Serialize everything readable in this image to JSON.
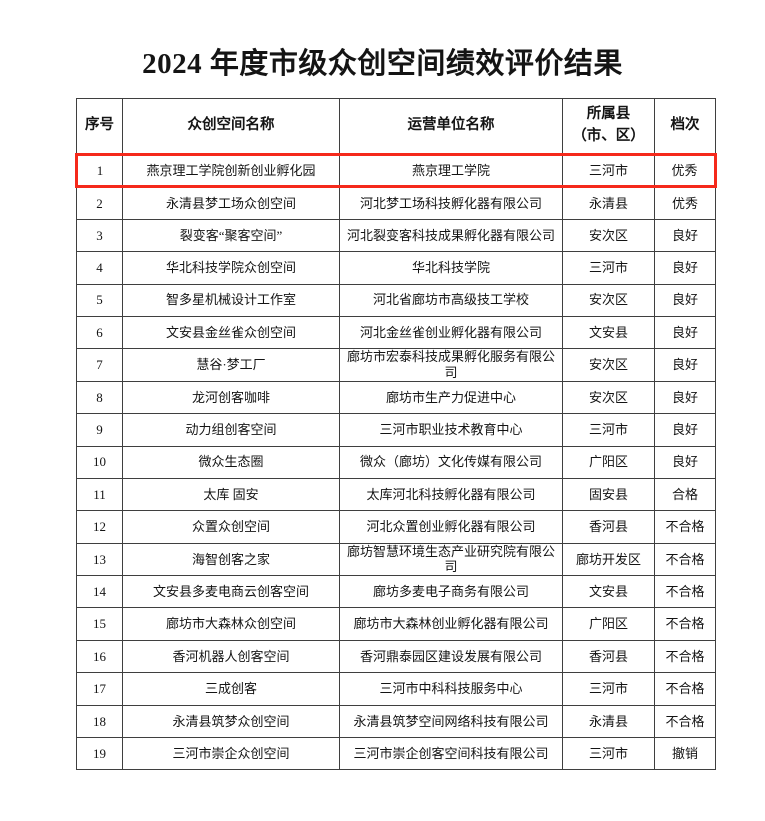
{
  "page": {
    "title": "2024 年度市级众创空间绩效评价结果"
  },
  "colors": {
    "highlight_red": "#f5291b",
    "table_border": "#3f3f3f",
    "text": "#141414",
    "background": "#ffffff"
  },
  "table": {
    "headers": [
      "序号",
      "众创空间名称",
      "运营单位名称",
      "所属县\n（市、区）",
      "档次"
    ],
    "rows": [
      {
        "highlighted": true,
        "cells": [
          "1",
          "燕京理工学院创新创业孵化园",
          "燕京理工学院",
          "三河市",
          "优秀"
        ]
      },
      {
        "highlighted": false,
        "cells": [
          "2",
          "永清县梦工场众创空间",
          "河北梦工场科技孵化器有限公司",
          "永清县",
          "优秀"
        ]
      },
      {
        "highlighted": false,
        "cells": [
          "3",
          "裂变客“聚客空间”",
          "河北裂变客科技成果孵化器有限公司",
          "安次区",
          "良好"
        ]
      },
      {
        "highlighted": false,
        "cells": [
          "4",
          "华北科技学院众创空间",
          "华北科技学院",
          "三河市",
          "良好"
        ]
      },
      {
        "highlighted": false,
        "cells": [
          "5",
          "智多星机械设计工作室",
          "河北省廊坊市高级技工学校",
          "安次区",
          "良好"
        ]
      },
      {
        "highlighted": false,
        "cells": [
          "6",
          "文安县金丝雀众创空间",
          "河北金丝雀创业孵化器有限公司",
          "文安县",
          "良好"
        ]
      },
      {
        "highlighted": false,
        "cells": [
          "7",
          "慧谷·梦工厂",
          "廊坊市宏泰科技成果孵化服务有限公司",
          "安次区",
          "良好"
        ]
      },
      {
        "highlighted": false,
        "cells": [
          "8",
          "龙河创客咖啡",
          "廊坊市生产力促进中心",
          "安次区",
          "良好"
        ]
      },
      {
        "highlighted": false,
        "cells": [
          "9",
          "动力组创客空间",
          "三河市职业技术教育中心",
          "三河市",
          "良好"
        ]
      },
      {
        "highlighted": false,
        "cells": [
          "10",
          "微众生态圈",
          "微众（廊坊）文化传媒有限公司",
          "广阳区",
          "良好"
        ]
      },
      {
        "highlighted": false,
        "cells": [
          "11",
          "太库 固安",
          "太库河北科技孵化器有限公司",
          "固安县",
          "合格"
        ]
      },
      {
        "highlighted": false,
        "cells": [
          "12",
          "众置众创空间",
          "河北众置创业孵化器有限公司",
          "香河县",
          "不合格"
        ]
      },
      {
        "highlighted": false,
        "cells": [
          "13",
          "海智创客之家",
          "廊坊智慧环境生态产业研究院有限公司",
          "廊坊开发区",
          "不合格"
        ]
      },
      {
        "highlighted": false,
        "cells": [
          "14",
          "文安县多麦电商云创客空间",
          "廊坊多麦电子商务有限公司",
          "文安县",
          "不合格"
        ]
      },
      {
        "highlighted": false,
        "cells": [
          "15",
          "廊坊市大森林众创空间",
          "廊坊市大森林创业孵化器有限公司",
          "广阳区",
          "不合格"
        ]
      },
      {
        "highlighted": false,
        "cells": [
          "16",
          "香河机器人创客空间",
          "香河鼎泰园区建设发展有限公司",
          "香河县",
          "不合格"
        ]
      },
      {
        "highlighted": false,
        "cells": [
          "17",
          "三成创客",
          "三河市中科科技服务中心",
          "三河市",
          "不合格"
        ]
      },
      {
        "highlighted": false,
        "cells": [
          "18",
          "永清县筑梦众创空间",
          "永清县筑梦空间网络科技有限公司",
          "永清县",
          "不合格"
        ]
      },
      {
        "highlighted": false,
        "cells": [
          "19",
          "三河市崇企众创空间",
          "三河市崇企创客空间科技有限公司",
          "三河市",
          "撤销"
        ]
      }
    ]
  }
}
